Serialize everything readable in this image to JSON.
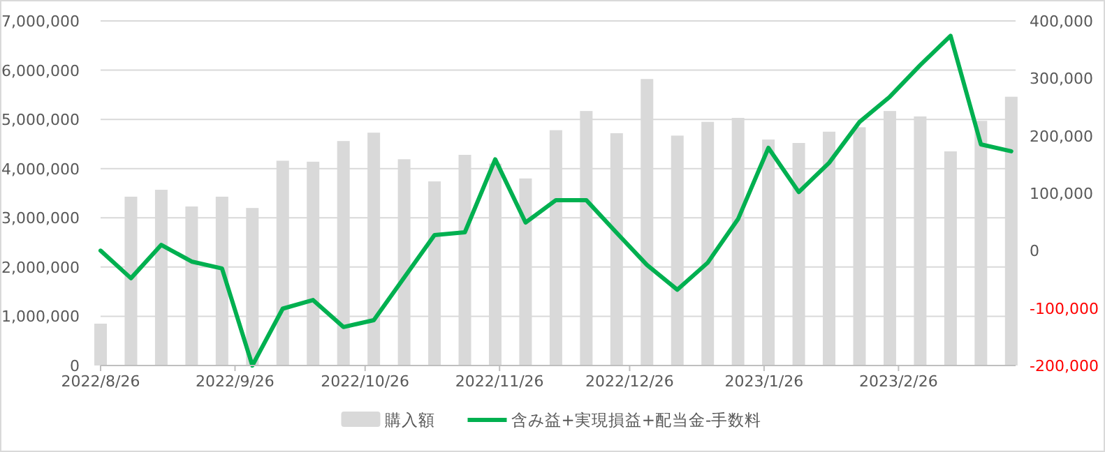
{
  "chart_data": {
    "type": "bar",
    "x": [
      "2022-08-26",
      "2022-09-02",
      "2022-09-09",
      "2022-09-16",
      "2022-09-23",
      "2022-09-30",
      "2022-10-07",
      "2022-10-14",
      "2022-10-21",
      "2022-10-28",
      "2022-11-04",
      "2022-11-11",
      "2022-11-18",
      "2022-11-25",
      "2022-12-02",
      "2022-12-09",
      "2022-12-16",
      "2022-12-23",
      "2022-12-30",
      "2023-01-06",
      "2023-01-13",
      "2023-01-20",
      "2023-01-27",
      "2023-02-03",
      "2023-02-10",
      "2023-02-17",
      "2023-02-24",
      "2023-03-03",
      "2023-03-10",
      "2023-03-17",
      "2023-03-24"
    ],
    "series": [
      {
        "name": "購入額",
        "color": "#d9d9d9",
        "values": [
          850000,
          3430000,
          3570000,
          3230000,
          3430000,
          3200000,
          4160000,
          4140000,
          4560000,
          4730000,
          4190000,
          3740000,
          4280000,
          4100000,
          3800000,
          4780000,
          5170000,
          4720000,
          5820000,
          4670000,
          4950000,
          5030000,
          4590000,
          4520000,
          4750000,
          4840000,
          5170000,
          5060000,
          4350000,
          4970000,
          5460000
        ]
      },
      {
        "name": "含み益+実現損益+配当金-手数料",
        "type": "line",
        "axis": "y2",
        "color": "#00b050",
        "values": [
          0,
          -48000,
          10000,
          -19000,
          -31000,
          -200000,
          -101000,
          -86000,
          -133000,
          -121000,
          -47000,
          27000,
          32000,
          159000,
          49000,
          88000,
          88000,
          31000,
          -25000,
          -68000,
          -21000,
          55000,
          179000,
          102000,
          153000,
          224000,
          268000,
          323000,
          374000,
          185000,
          173000
        ]
      }
    ],
    "xlim": [
      "2022-08-26",
      "2023-03-25"
    ],
    "xticks": [
      {
        "value": "2022-08-26",
        "label": "2022/8/26"
      },
      {
        "value": "2022-09-26",
        "label": "2022/9/26"
      },
      {
        "value": "2022-10-26",
        "label": "2022/10/26"
      },
      {
        "value": "2022-11-26",
        "label": "2022/11/26"
      },
      {
        "value": "2022-12-26",
        "label": "2022/12/26"
      },
      {
        "value": "2023-01-26",
        "label": "2023/1/26"
      },
      {
        "value": "2023-02-26",
        "label": "2023/2/26"
      }
    ],
    "ylim": [
      0,
      7000000
    ],
    "yticks": [
      {
        "value": 0,
        "label": "0"
      },
      {
        "value": 1000000,
        "label": "1,000,000"
      },
      {
        "value": 2000000,
        "label": "2,000,000"
      },
      {
        "value": 3000000,
        "label": "3,000,000"
      },
      {
        "value": 4000000,
        "label": "4,000,000"
      },
      {
        "value": 5000000,
        "label": "5,000,000"
      },
      {
        "value": 6000000,
        "label": "6,000,000"
      },
      {
        "value": 7000000,
        "label": "7,000,000"
      }
    ],
    "y2lim": [
      -200000,
      400000
    ],
    "y2ticks": [
      {
        "value": -200000,
        "label": "-200,000"
      },
      {
        "value": -100000,
        "label": "-100,000"
      },
      {
        "value": 0,
        "label": "0"
      },
      {
        "value": 100000,
        "label": "100,000"
      },
      {
        "value": 200000,
        "label": "200,000"
      },
      {
        "value": 300000,
        "label": "300,000"
      },
      {
        "value": 400000,
        "label": "400,000"
      }
    ],
    "grid": "y",
    "legend": "bottom",
    "marker": "none",
    "line_style": "solid"
  }
}
